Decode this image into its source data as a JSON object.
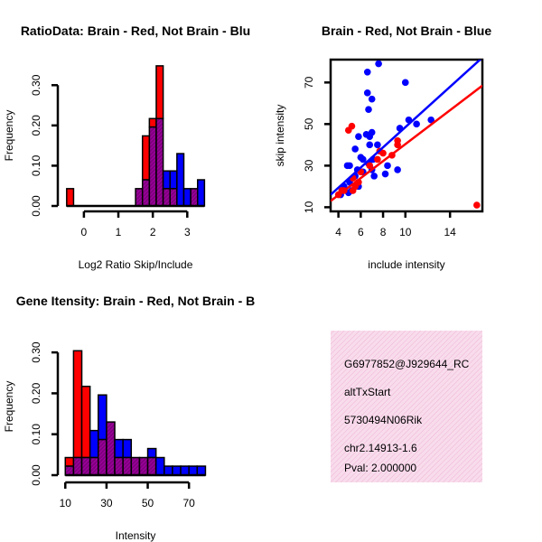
{
  "chart_data": [
    {
      "id": "ratio",
      "type": "histogram",
      "title": "RatioData: Brain - Red, Not Brain - Blu",
      "xlabel": "Log2 Ratio Skip/Include",
      "ylabel": "Frequency",
      "xlim": [
        -0.6,
        3.7
      ],
      "ylim": [
        0,
        0.35
      ],
      "xticks": [
        0,
        1,
        2,
        3
      ],
      "yticks": [
        0.0,
        0.1,
        0.2,
        0.3
      ],
      "ytick_labels": [
        "0.00",
        "0.10",
        "0.20",
        "0.30"
      ],
      "bin_start": -0.5,
      "bin_width": 0.2,
      "series": [
        {
          "name": "Brain",
          "color": "#ff0000",
          "values": [
            0.043,
            0,
            0,
            0,
            0,
            0,
            0,
            0,
            0,
            0,
            0.043,
            0.174,
            0.217,
            0.348,
            0.043,
            0.043,
            0,
            0,
            0.043,
            0
          ]
        },
        {
          "name": "Not Brain",
          "color": "#0000ff",
          "values": [
            0,
            0,
            0,
            0,
            0,
            0,
            0,
            0,
            0,
            0,
            0.043,
            0.065,
            0.196,
            0.217,
            0.087,
            0.087,
            0.13,
            0.043,
            0.043,
            0.065
          ]
        }
      ]
    },
    {
      "id": "scatter",
      "type": "scatter",
      "title": "Brain - Red, Not Brain - Blue",
      "xlabel": "include intensity",
      "ylabel": "skip intensity",
      "xlim": [
        3.3,
        16.9
      ],
      "ylim": [
        8,
        81
      ],
      "xticks": [
        4,
        6,
        8,
        10,
        14
      ],
      "yticks": [
        10,
        30,
        50,
        70
      ],
      "series": [
        {
          "name": "Not Brain",
          "color": "#0000ff",
          "points": [
            [
              7.6,
              79
            ],
            [
              6.6,
              75
            ],
            [
              6.6,
              65
            ],
            [
              10,
              70
            ],
            [
              7,
              62
            ],
            [
              6.7,
              57
            ],
            [
              10.3,
              52
            ],
            [
              11,
              50
            ],
            [
              12.3,
              52
            ],
            [
              9.5,
              48
            ],
            [
              5.8,
              44
            ],
            [
              6.5,
              45
            ],
            [
              6.8,
              44
            ],
            [
              7,
              46
            ],
            [
              5.5,
              38
            ],
            [
              7.5,
              40
            ],
            [
              6,
              34
            ],
            [
              6.2,
              33
            ],
            [
              5,
              30
            ],
            [
              5.7,
              28
            ],
            [
              6.2,
              27
            ],
            [
              4.8,
              30
            ],
            [
              7.2,
              25
            ],
            [
              8.2,
              26
            ],
            [
              9.3,
              28
            ],
            [
              7,
              28
            ],
            [
              5.5,
              25
            ],
            [
              6.7,
              31
            ],
            [
              4.5,
              20
            ],
            [
              5,
              22
            ],
            [
              5.2,
              18
            ],
            [
              5.8,
              20
            ],
            [
              4.2,
              16
            ],
            [
              4.9,
              17
            ],
            [
              7.1,
              33
            ],
            [
              6.8,
              40
            ],
            [
              8.4,
              30
            ]
          ]
        },
        {
          "name": "Brain",
          "color": "#ff0000",
          "points": [
            [
              5.2,
              49
            ],
            [
              4.9,
              47
            ],
            [
              9.3,
              40
            ],
            [
              9.3,
              42
            ],
            [
              8,
              36
            ],
            [
              7.5,
              33
            ],
            [
              6.8,
              30
            ],
            [
              5.3,
              24
            ],
            [
              4,
              16
            ],
            [
              4.5,
              18
            ],
            [
              5.5,
              20
            ],
            [
              5.3,
              18
            ],
            [
              6,
              27
            ],
            [
              16.4,
              11
            ],
            [
              4.3,
              18
            ],
            [
              5.8,
              22
            ],
            [
              7.7,
              37
            ],
            [
              8.8,
              35
            ]
          ]
        }
      ],
      "fit_lines": [
        {
          "name": "Not Brain fit",
          "color": "#0000ff",
          "from": [
            3.3,
            16
          ],
          "to": [
            16.9,
            82
          ]
        },
        {
          "name": "Brain fit",
          "color": "#ff0000",
          "from": [
            3.3,
            13
          ],
          "to": [
            16.9,
            68.5
          ]
        }
      ]
    },
    {
      "id": "intensity",
      "type": "histogram",
      "title": "Gene Itensity: Brain - Red, Not Brain - B",
      "xlabel": "Intensity",
      "ylabel": "Frequency",
      "xlim": [
        9,
        80
      ],
      "ylim": [
        0,
        0.34
      ],
      "xticks": [
        10,
        30,
        50,
        70
      ],
      "yticks": [
        0.0,
        0.1,
        0.2,
        0.3
      ],
      "ytick_labels": [
        "0.00",
        "0.10",
        "0.20",
        "0.30"
      ],
      "bin_start": 10,
      "bin_width": 4,
      "series": [
        {
          "name": "Brain",
          "color": "#ff0000",
          "values": [
            0.043,
            0.304,
            0.217,
            0.043,
            0.087,
            0.13,
            0.043,
            0.043,
            0.043,
            0.043,
            0.043,
            0,
            0,
            0,
            0,
            0,
            0
          ]
        },
        {
          "name": "Not Brain",
          "color": "#0000ff",
          "values": [
            0.022,
            0.043,
            0.043,
            0.109,
            0.196,
            0.13,
            0.087,
            0.087,
            0.043,
            0.043,
            0.065,
            0.043,
            0.022,
            0.022,
            0.022,
            0.022,
            0.022
          ]
        }
      ]
    }
  ],
  "info_panel": {
    "background": "#f6d8ea",
    "lines": [
      {
        "text": "G6977852@J929644_RC",
        "color": "#000000"
      },
      {
        "text": "altTxStart",
        "color": "#000000"
      },
      {
        "text": "5730494N06Rik",
        "color": "#000000"
      },
      {
        "text": "chr2.14913-1.6",
        "color": "#000000"
      },
      {
        "text": "Pval: 2.000000",
        "color": "#cc0000"
      }
    ]
  }
}
